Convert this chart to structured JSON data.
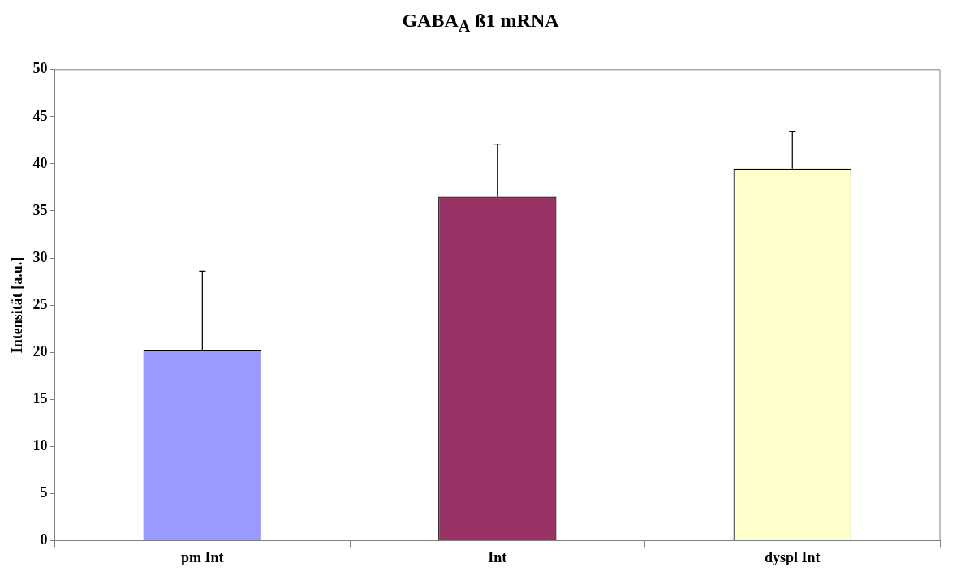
{
  "chart_data": {
    "type": "bar",
    "title": "GABA$_{A}$ ß1 mRNA",
    "ylabel": "Intensität [a.u.]",
    "categories": [
      "pm Int",
      "Int",
      "dyspl Int"
    ],
    "values": [
      20.2,
      36.5,
      39.5
    ],
    "colors": [
      "#9999ff",
      "#993366",
      "#ffffcc"
    ],
    "errors": [
      [
        20.2,
        28.6
      ],
      [
        36.5,
        42.1
      ],
      [
        39.5,
        43.4
      ]
    ],
    "ylim": [
      0,
      50
    ],
    "yticks": [
      0,
      5,
      10,
      15,
      20,
      25,
      30,
      35,
      40,
      45,
      50
    ],
    "grid": false,
    "legend": false
  }
}
